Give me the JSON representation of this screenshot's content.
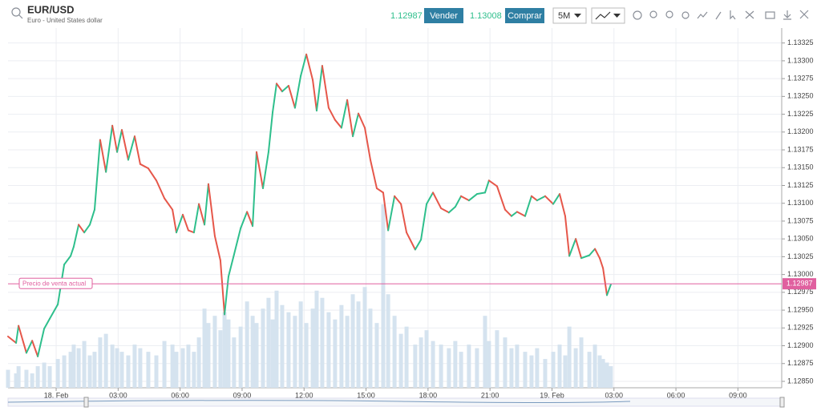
{
  "toolbar": {
    "symbol": "EUR/USD",
    "description": "Euro - United States dollar",
    "sell_price": "1.12987",
    "sell": "Vender",
    "buy_price": "1.13008",
    "buy": "Comprar",
    "interval": "5M"
  },
  "chart_data": {
    "type": "line",
    "xlim": [
      -2.33,
      35.12
    ],
    "xticks": [
      {
        "value": 0,
        "label": "18. Feb"
      },
      {
        "value": 3,
        "label": "03:00"
      },
      {
        "value": 6,
        "label": "06:00"
      },
      {
        "value": 9,
        "label": "09:00"
      },
      {
        "value": 12,
        "label": "12:00"
      },
      {
        "value": 15,
        "label": "15:00"
      },
      {
        "value": 18,
        "label": "18:00"
      },
      {
        "value": 21,
        "label": "21:00"
      },
      {
        "value": 24,
        "label": "19. Feb"
      },
      {
        "value": 27,
        "label": "03:00"
      },
      {
        "value": 30,
        "label": "06:00"
      },
      {
        "value": 33,
        "label": "09:00"
      }
    ],
    "ylim": [
      1.12841,
      1.13346
    ],
    "yticks": [
      {
        "value": 1.1285,
        "label": "1.12850"
      },
      1.12875,
      {
        "value": 1.129,
        "label": "1.12900"
      },
      1.12925,
      {
        "value": 1.1295,
        "label": "1.12950"
      },
      1.12975,
      {
        "value": 1.13,
        "label": "1.13000"
      },
      1.13025,
      {
        "value": 1.1305,
        "label": "1.13050"
      },
      1.13075,
      {
        "value": 1.131,
        "label": "1.13100"
      },
      1.13125,
      {
        "value": 1.1315,
        "label": "1.13150"
      },
      1.13175,
      {
        "value": 1.132,
        "label": "1.13200"
      },
      1.13225,
      {
        "value": 1.1325,
        "label": "1.13250"
      },
      1.13275,
      {
        "value": 1.133,
        "label": "1.13300"
      },
      1.13325
    ],
    "y2lim": [
      0,
      100
    ],
    "grid": true,
    "up_color": "#2ebf8c",
    "down_color": "#e6574a",
    "current_price": 1.12987,
    "current_price_label": "Precio de venta actual",
    "current_price_color": "#e0609f",
    "x": [
      -2.33,
      -1.94,
      -1.82,
      -1.44,
      -1.16,
      -0.89,
      -0.58,
      -0.31,
      0.08,
      0.39,
      0.7,
      0.85,
      1.09,
      1.36,
      1.63,
      1.86,
      2.13,
      2.41,
      2.72,
      2.95,
      3.18,
      3.49,
      3.8,
      4.07,
      4.46,
      4.85,
      5.24,
      5.63,
      5.82,
      6.13,
      6.4,
      6.67,
      6.91,
      7.18,
      7.37,
      7.68,
      7.95,
      8.15,
      8.34,
      8.61,
      8.93,
      9.24,
      9.51,
      9.7,
      10.01,
      10.28,
      10.48,
      10.67,
      10.94,
      11.25,
      11.56,
      11.84,
      12.11,
      12.42,
      12.61,
      12.88,
      13.19,
      13.5,
      13.81,
      14.09,
      14.36,
      14.63,
      14.94,
      15.21,
      15.52,
      15.83,
      16.07,
      16.38,
      16.69,
      16.96,
      17.38,
      17.66,
      17.93,
      18.24,
      18.63,
      19.01,
      19.32,
      19.6,
      19.98,
      20.37,
      20.76,
      20.95,
      21.34,
      21.73,
      22.04,
      22.31,
      22.7,
      23.01,
      23.28,
      23.67,
      24.06,
      24.37,
      24.64,
      24.84,
      25.15,
      25.42,
      25.81,
      26.08,
      26.31,
      26.47,
      26.66,
      26.85
    ],
    "series": [
      {
        "name": "EUR/USD",
        "values": [
          1.12913,
          1.12904,
          1.12928,
          1.1289,
          1.12907,
          1.12885,
          1.12924,
          1.12938,
          1.12958,
          1.13014,
          1.13026,
          1.13039,
          1.1307,
          1.13059,
          1.1307,
          1.13091,
          1.13189,
          1.13144,
          1.13209,
          1.13172,
          1.13203,
          1.13161,
          1.13194,
          1.13155,
          1.13149,
          1.13132,
          1.13107,
          1.13091,
          1.13059,
          1.13084,
          1.13062,
          1.13059,
          1.13099,
          1.1307,
          1.13127,
          1.13054,
          1.1302,
          1.12944,
          1.12997,
          1.13028,
          1.13065,
          1.13088,
          1.13068,
          1.13172,
          1.13121,
          1.13172,
          1.13228,
          1.13268,
          1.13257,
          1.13265,
          1.13234,
          1.13279,
          1.13309,
          1.13273,
          1.1323,
          1.13293,
          1.13234,
          1.13217,
          1.13206,
          1.13245,
          1.13194,
          1.13226,
          1.13206,
          1.13161,
          1.13121,
          1.13115,
          1.13062,
          1.1311,
          1.13099,
          1.13059,
          1.13035,
          1.13049,
          1.13099,
          1.13115,
          1.13093,
          1.13087,
          1.13095,
          1.1311,
          1.13104,
          1.13113,
          1.13115,
          1.13132,
          1.13124,
          1.13091,
          1.13082,
          1.13088,
          1.13082,
          1.1311,
          1.13104,
          1.1311,
          1.13099,
          1.13113,
          1.13082,
          1.13026,
          1.1305,
          1.13023,
          1.13027,
          1.13036,
          1.13023,
          1.13009,
          1.12971,
          1.12986
        ]
      },
      {
        "name": "Volume",
        "axis": "y2",
        "color": "#d5e3ef",
        "values": [
          5,
          4,
          6,
          5,
          4,
          6,
          7,
          6,
          8,
          9,
          10,
          12,
          11,
          13,
          9,
          10,
          14,
          15,
          12,
          11,
          10,
          9,
          12,
          11,
          10,
          9,
          13,
          12,
          10,
          11,
          12,
          10,
          14,
          22,
          18,
          20,
          16,
          21,
          19,
          14,
          17,
          24,
          20,
          18,
          22,
          25,
          19,
          27,
          23,
          21,
          20,
          24,
          18,
          22,
          27,
          25,
          21,
          19,
          23,
          20,
          26,
          24,
          28,
          22,
          18,
          51,
          26,
          20,
          15,
          17,
          12,
          14,
          16,
          13,
          12,
          11,
          13,
          10,
          12,
          11,
          20,
          13,
          16,
          14,
          11,
          12,
          10,
          9,
          11,
          8,
          10,
          12,
          9,
          17,
          11,
          14,
          10,
          12,
          9,
          8,
          7,
          6
        ]
      }
    ]
  }
}
